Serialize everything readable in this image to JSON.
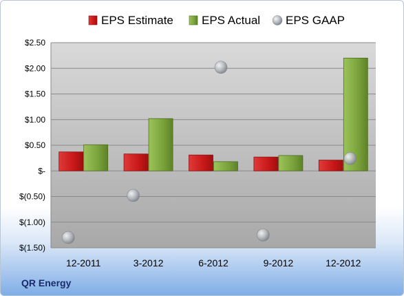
{
  "company": "QR Energy",
  "chart_data": {
    "type": "bar",
    "categories": [
      "12-2011",
      "3-2012",
      "6-2012",
      "9-2012",
      "12-2012"
    ],
    "series": [
      {
        "name": "EPS Estimate",
        "kind": "bar",
        "color": "#cc1f1f",
        "values": [
          0.37,
          0.33,
          0.31,
          0.27,
          0.21
        ]
      },
      {
        "name": "EPS Actual",
        "kind": "bar",
        "color": "#7fa840",
        "values": [
          0.51,
          1.02,
          0.18,
          0.3,
          2.2
        ]
      },
      {
        "name": "EPS GAAP",
        "kind": "marker",
        "color": "#b8bcc2",
        "values": [
          -1.3,
          -0.48,
          2.02,
          -1.25,
          0.24
        ]
      }
    ],
    "ylim": [
      -1.5,
      2.5
    ],
    "yticks": [
      2.5,
      2.0,
      1.5,
      1.0,
      0.5,
      0,
      -0.5,
      -1.0,
      -1.5
    ],
    "ytick_labels": [
      "$2.50",
      "$2.00",
      "$1.50",
      "$1.00",
      "$0.50",
      "$-",
      "$(0.50)",
      "$(1.00)",
      "$(1.50)"
    ],
    "legend_position": "top",
    "grid": true
  }
}
